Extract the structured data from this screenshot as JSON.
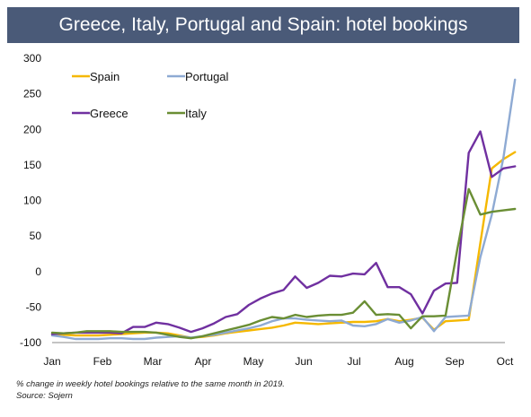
{
  "title": "Greece, Italy, Portugal and Spain: hotel bookings",
  "note": "% change in weekly hotel bookings relative to the same month in 2019.",
  "source": "Source: Sojern",
  "chart_data": {
    "type": "line",
    "title": "Greece, Italy, Portugal and Spain: hotel bookings",
    "xlabel": "",
    "ylabel": "",
    "ylim": [
      -100,
      300
    ],
    "yticks": [
      -100,
      -50,
      0,
      50,
      100,
      150,
      200,
      250,
      300
    ],
    "xlim": [
      0,
      9
    ],
    "xtick_labels": [
      "Jan",
      "Feb",
      "Mar",
      "Apr",
      "May",
      "Jun",
      "Jul",
      "Aug",
      "Sep",
      "Oct"
    ],
    "grid": false,
    "legend": "top-left",
    "series": [
      {
        "name": "Spain",
        "color": "#f5b800",
        "points": [
          [
            0,
            -88
          ],
          [
            0.23,
            -89
          ],
          [
            0.46,
            -90
          ],
          [
            0.69,
            -90
          ],
          [
            0.92,
            -90
          ],
          [
            1.15,
            -89
          ],
          [
            1.38,
            -88
          ],
          [
            1.61,
            -87
          ],
          [
            1.84,
            -86
          ],
          [
            2.07,
            -86
          ],
          [
            2.3,
            -87
          ],
          [
            2.53,
            -90
          ],
          [
            2.76,
            -93
          ],
          [
            2.99,
            -92
          ],
          [
            3.22,
            -90
          ],
          [
            3.45,
            -87
          ],
          [
            3.68,
            -85
          ],
          [
            3.91,
            -83
          ],
          [
            4.14,
            -81
          ],
          [
            4.37,
            -79
          ],
          [
            4.6,
            -76
          ],
          [
            4.83,
            -72
          ],
          [
            5.06,
            -73
          ],
          [
            5.29,
            -74
          ],
          [
            5.52,
            -73
          ],
          [
            5.75,
            -72
          ],
          [
            5.98,
            -71
          ],
          [
            6.21,
            -71
          ],
          [
            6.44,
            -70
          ],
          [
            6.67,
            -67
          ],
          [
            6.9,
            -70
          ],
          [
            7.13,
            -68
          ],
          [
            7.36,
            -65
          ],
          [
            7.59,
            -82
          ],
          [
            7.82,
            -70
          ],
          [
            8.05,
            -69
          ],
          [
            8.28,
            -68
          ],
          [
            8.51,
            40
          ],
          [
            8.74,
            145
          ],
          [
            8.97,
            158
          ],
          [
            9.2,
            168
          ]
        ]
      },
      {
        "name": "Portugal",
        "color": "#8eaad3",
        "points": [
          [
            0,
            -90
          ],
          [
            0.23,
            -92
          ],
          [
            0.46,
            -95
          ],
          [
            0.69,
            -95
          ],
          [
            0.92,
            -95
          ],
          [
            1.15,
            -94
          ],
          [
            1.38,
            -94
          ],
          [
            1.61,
            -95
          ],
          [
            1.84,
            -95
          ],
          [
            2.07,
            -93
          ],
          [
            2.3,
            -92
          ],
          [
            2.53,
            -91
          ],
          [
            2.76,
            -93
          ],
          [
            2.99,
            -91
          ],
          [
            3.22,
            -89
          ],
          [
            3.45,
            -86
          ],
          [
            3.68,
            -83
          ],
          [
            3.91,
            -80
          ],
          [
            4.14,
            -76
          ],
          [
            4.37,
            -70
          ],
          [
            4.6,
            -66
          ],
          [
            4.83,
            -66
          ],
          [
            5.06,
            -68
          ],
          [
            5.29,
            -69
          ],
          [
            5.52,
            -70
          ],
          [
            5.75,
            -69
          ],
          [
            5.98,
            -76
          ],
          [
            6.21,
            -77
          ],
          [
            6.44,
            -74
          ],
          [
            6.67,
            -67
          ],
          [
            6.9,
            -72
          ],
          [
            7.13,
            -69
          ],
          [
            7.36,
            -64
          ],
          [
            7.59,
            -84
          ],
          [
            7.82,
            -64
          ],
          [
            8.05,
            -63
          ],
          [
            8.28,
            -62
          ],
          [
            8.51,
            20
          ],
          [
            8.74,
            80
          ],
          [
            8.97,
            160
          ],
          [
            9.2,
            270
          ]
        ]
      },
      {
        "name": "Greece",
        "color": "#7030a0",
        "points": [
          [
            0,
            -88
          ],
          [
            0.23,
            -87
          ],
          [
            0.46,
            -86
          ],
          [
            0.69,
            -86
          ],
          [
            0.92,
            -86
          ],
          [
            1.15,
            -86
          ],
          [
            1.38,
            -87
          ],
          [
            1.61,
            -78
          ],
          [
            1.84,
            -78
          ],
          [
            2.07,
            -72
          ],
          [
            2.3,
            -74
          ],
          [
            2.53,
            -79
          ],
          [
            2.76,
            -85
          ],
          [
            2.99,
            -80
          ],
          [
            3.22,
            -73
          ],
          [
            3.45,
            -64
          ],
          [
            3.68,
            -60
          ],
          [
            3.91,
            -47
          ],
          [
            4.14,
            -38
          ],
          [
            4.37,
            -31
          ],
          [
            4.6,
            -26
          ],
          [
            4.83,
            -7
          ],
          [
            5.06,
            -23
          ],
          [
            5.29,
            -16
          ],
          [
            5.52,
            -6
          ],
          [
            5.75,
            -7
          ],
          [
            5.98,
            -3
          ],
          [
            6.21,
            -4
          ],
          [
            6.44,
            12
          ],
          [
            6.67,
            -22
          ],
          [
            6.9,
            -22
          ],
          [
            7.13,
            -32
          ],
          [
            7.36,
            -59
          ],
          [
            7.59,
            -27
          ],
          [
            7.82,
            -17
          ],
          [
            8.05,
            -16
          ],
          [
            8.28,
            167
          ],
          [
            8.51,
            197
          ],
          [
            8.74,
            133
          ],
          [
            8.97,
            145
          ],
          [
            9.2,
            148
          ]
        ]
      },
      {
        "name": "Italy",
        "color": "#6a8e34",
        "points": [
          [
            0,
            -86
          ],
          [
            0.23,
            -87
          ],
          [
            0.46,
            -86
          ],
          [
            0.69,
            -84
          ],
          [
            0.92,
            -84
          ],
          [
            1.15,
            -84
          ],
          [
            1.38,
            -85
          ],
          [
            1.61,
            -85
          ],
          [
            1.84,
            -85
          ],
          [
            2.07,
            -86
          ],
          [
            2.3,
            -89
          ],
          [
            2.53,
            -92
          ],
          [
            2.76,
            -94
          ],
          [
            2.99,
            -91
          ],
          [
            3.22,
            -87
          ],
          [
            3.45,
            -83
          ],
          [
            3.68,
            -79
          ],
          [
            3.91,
            -75
          ],
          [
            4.14,
            -69
          ],
          [
            4.37,
            -64
          ],
          [
            4.6,
            -66
          ],
          [
            4.83,
            -61
          ],
          [
            5.06,
            -64
          ],
          [
            5.29,
            -62
          ],
          [
            5.52,
            -61
          ],
          [
            5.75,
            -61
          ],
          [
            5.98,
            -58
          ],
          [
            6.21,
            -42
          ],
          [
            6.44,
            -61
          ],
          [
            6.67,
            -60
          ],
          [
            6.9,
            -61
          ],
          [
            7.13,
            -80
          ],
          [
            7.36,
            -63
          ],
          [
            7.59,
            -63
          ],
          [
            7.82,
            -62
          ],
          [
            8.05,
            30
          ],
          [
            8.28,
            116
          ],
          [
            8.51,
            80
          ],
          [
            8.74,
            84
          ],
          [
            8.97,
            86
          ],
          [
            9.2,
            88
          ]
        ]
      }
    ]
  }
}
